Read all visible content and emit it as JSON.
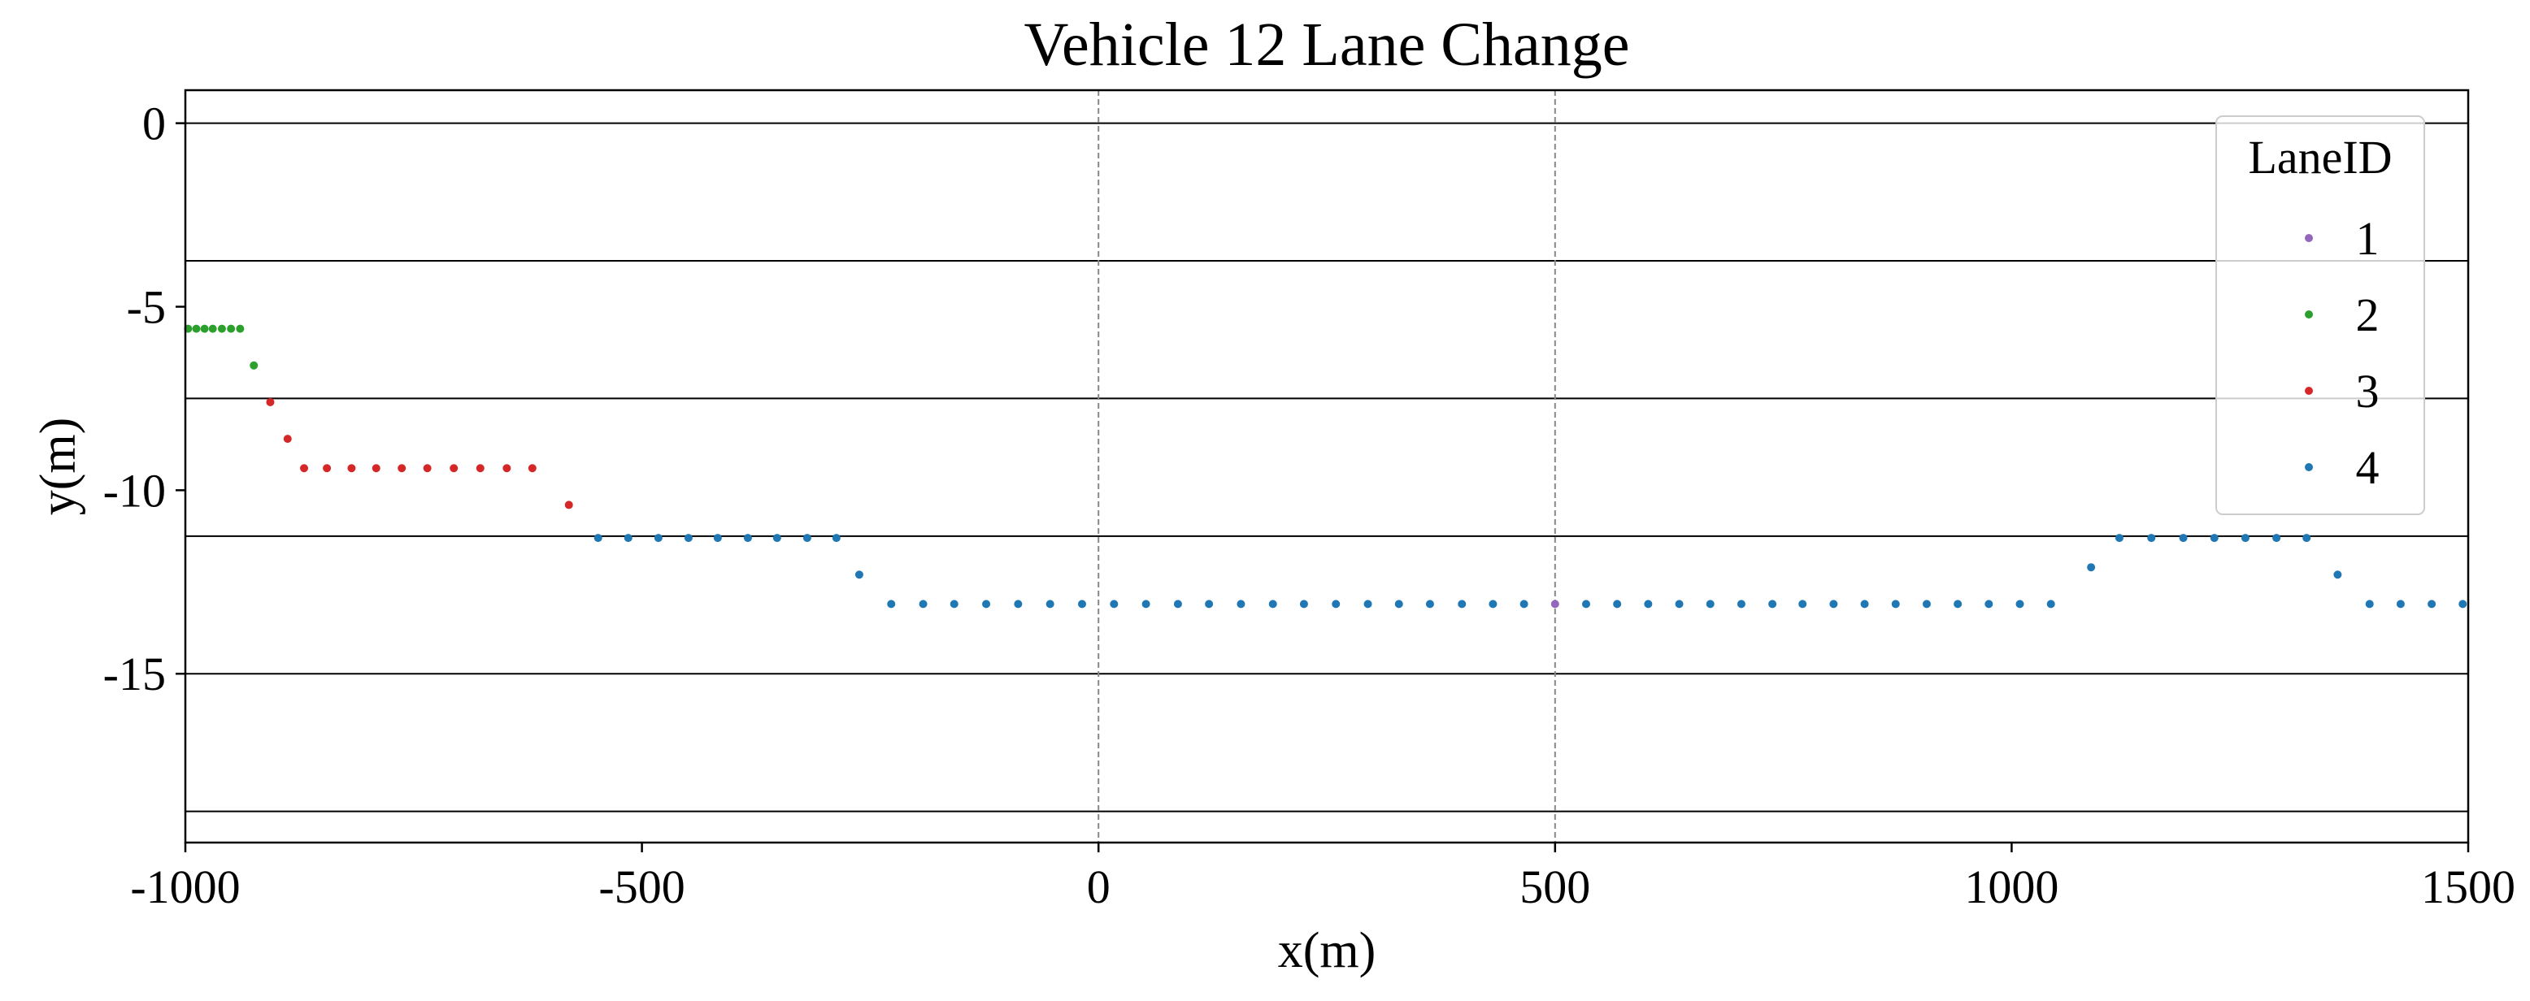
{
  "chart_data": {
    "type": "scatter",
    "title": "Vehicle 12 Lane Change",
    "xlabel": "x(m)",
    "ylabel": "y(m)",
    "xlim": [
      -1000,
      1500
    ],
    "ylim": [
      -19.6,
      0.9
    ],
    "xticks": [
      -1000,
      -500,
      0,
      500,
      1000,
      1500
    ],
    "xtick_labels": [
      "-1000",
      "-500",
      "0",
      "500",
      "1000",
      "1500"
    ],
    "yticks": [
      0,
      -5,
      -10,
      -15
    ],
    "ytick_labels": [
      "0",
      "-5",
      "-10",
      "-15"
    ],
    "lane_boundaries_y": [
      0,
      -3.75,
      -7.5,
      -11.25,
      -15,
      -18.75
    ],
    "vertical_dashed_lines_x": [
      0,
      500
    ],
    "legend": {
      "title": "LaneID",
      "placement": "top-right"
    },
    "series": [
      {
        "name": "1",
        "color": "#9467bd",
        "x": [
          500
        ],
        "y": [
          -13.1
        ]
      },
      {
        "name": "2",
        "color": "#2ca02c",
        "x": [
          -997,
          -988,
          -979,
          -970,
          -960,
          -950,
          -940,
          -925
        ],
        "y": [
          -5.6,
          -5.6,
          -5.6,
          -5.6,
          -5.6,
          -5.6,
          -5.6,
          -6.6
        ]
      },
      {
        "name": "3",
        "color": "#d62728",
        "x": [
          -907,
          -888,
          -870,
          -845,
          -818,
          -791,
          -763,
          -735,
          -706,
          -677,
          -648,
          -620,
          -580
        ],
        "y": [
          -7.6,
          -8.6,
          -9.4,
          -9.4,
          -9.4,
          -9.4,
          -9.4,
          -9.4,
          -9.4,
          -9.4,
          -9.4,
          -9.4,
          -10.4
        ]
      },
      {
        "name": "4",
        "color": "#1f77b4",
        "x": [
          -548,
          -515,
          -482,
          -449,
          -417,
          -384,
          -352,
          -319,
          -287,
          -262,
          -227,
          -192,
          -158,
          -123,
          -88,
          -53,
          -18,
          17,
          52,
          87,
          121,
          156,
          191,
          225,
          260,
          295,
          329,
          363,
          398,
          432,
          466,
          534,
          568,
          602,
          636,
          670,
          704,
          738,
          771,
          805,
          839,
          873,
          907,
          941,
          975,
          1009,
          1043,
          1087,
          1118,
          1153,
          1188,
          1222,
          1256,
          1290,
          1323,
          1357,
          1392,
          1426,
          1460,
          1494
        ],
        "y": [
          -11.3,
          -11.3,
          -11.3,
          -11.3,
          -11.3,
          -11.3,
          -11.3,
          -11.3,
          -11.3,
          -12.3,
          -13.1,
          -13.1,
          -13.1,
          -13.1,
          -13.1,
          -13.1,
          -13.1,
          -13.1,
          -13.1,
          -13.1,
          -13.1,
          -13.1,
          -13.1,
          -13.1,
          -13.1,
          -13.1,
          -13.1,
          -13.1,
          -13.1,
          -13.1,
          -13.1,
          -13.1,
          -13.1,
          -13.1,
          -13.1,
          -13.1,
          -13.1,
          -13.1,
          -13.1,
          -13.1,
          -13.1,
          -13.1,
          -13.1,
          -13.1,
          -13.1,
          -13.1,
          -13.1,
          -12.1,
          -11.3,
          -11.3,
          -11.3,
          -11.3,
          -11.3,
          -11.3,
          -11.3,
          -12.3,
          -13.1,
          -13.1,
          -13.1,
          -13.1
        ]
      }
    ]
  }
}
